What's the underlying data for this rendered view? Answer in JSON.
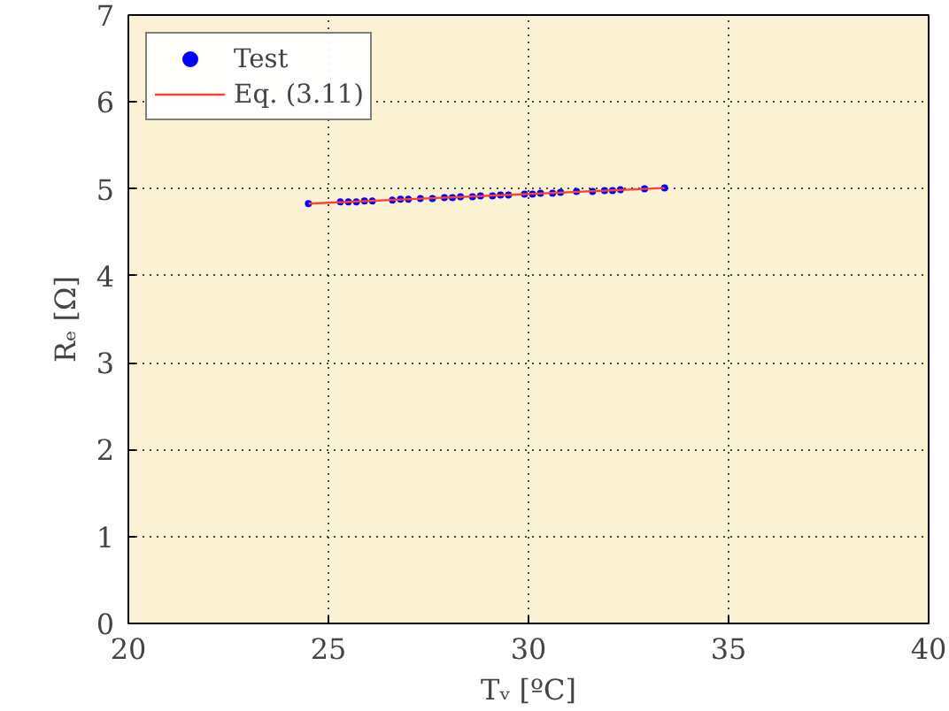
{
  "chart_data": {
    "type": "scatter",
    "xlabel": "Tᵥ [ºC]",
    "ylabel": "Rₑ [Ω]",
    "xlim": [
      20,
      40
    ],
    "xticks": [
      20,
      25,
      30,
      35,
      40
    ],
    "ylim": [
      0,
      7
    ],
    "yticks": [
      0,
      1,
      2,
      3,
      4,
      5,
      6,
      7
    ],
    "grid": true,
    "legend": "top left",
    "series": [
      {
        "name": "Test",
        "marker": "circle",
        "color": "#0000ff",
        "x": [
          24.5,
          25.3,
          25.5,
          25.7,
          25.9,
          26.1,
          26.6,
          26.8,
          27.0,
          27.3,
          27.6,
          27.9,
          28.1,
          28.3,
          28.6,
          28.8,
          29.1,
          29.3,
          29.5,
          29.9,
          30.1,
          30.3,
          30.6,
          30.8,
          31.2,
          31.6,
          31.9,
          32.1,
          32.3,
          32.9,
          33.4
        ],
        "values": [
          4.83,
          4.85,
          4.85,
          4.85,
          4.86,
          4.86,
          4.87,
          4.88,
          4.88,
          4.89,
          4.89,
          4.9,
          4.9,
          4.91,
          4.91,
          4.92,
          4.92,
          4.93,
          4.93,
          4.94,
          4.94,
          4.95,
          4.95,
          4.96,
          4.97,
          4.97,
          4.98,
          4.98,
          4.99,
          5.0,
          5.01
        ]
      },
      {
        "name": "Eq. (3.11)",
        "type": "line",
        "line_style": "solid",
        "color": "#ff4030",
        "x": [
          24.5,
          33.4
        ],
        "values": [
          4.83,
          5.01
        ]
      }
    ]
  }
}
